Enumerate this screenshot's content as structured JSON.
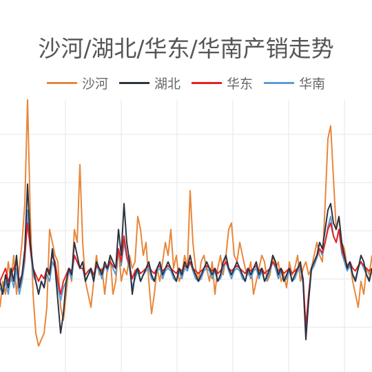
{
  "chart_data": {
    "type": "line",
    "title": "沙河/湖北/华东/华南产销走势",
    "xlabel": "",
    "ylabel": "",
    "grid": true,
    "legend_position": "top",
    "ylim": [
      0,
      2.1
    ],
    "x": [
      0,
      1,
      2,
      3,
      4,
      5,
      6,
      7,
      8,
      9,
      10,
      11,
      12,
      13,
      14,
      15,
      16,
      17,
      18,
      19,
      20,
      21,
      22,
      23,
      24,
      25,
      26,
      27,
      28,
      29,
      30,
      31,
      32,
      33,
      34,
      35,
      36,
      37,
      38,
      39,
      40,
      41,
      42,
      43,
      44,
      45,
      46,
      47,
      48,
      49,
      50,
      51,
      52,
      53,
      54,
      55,
      56,
      57,
      58,
      59,
      60,
      61,
      62,
      63,
      64,
      65,
      66,
      67,
      68,
      69,
      70,
      71,
      72,
      73,
      74,
      75,
      76,
      77,
      78,
      79,
      80,
      81,
      82,
      83,
      84,
      85,
      86,
      87,
      88,
      89,
      90,
      91,
      92,
      93,
      94,
      95,
      96,
      97,
      98,
      99,
      100,
      101,
      102,
      103,
      104,
      105,
      106,
      107,
      108,
      109,
      110,
      111,
      112,
      113,
      114,
      115,
      116,
      117,
      118,
      119,
      120,
      121,
      122,
      123,
      124,
      125,
      126,
      127,
      128,
      129,
      130,
      131,
      132,
      133,
      134,
      135
    ],
    "series": [
      {
        "name": "沙河",
        "color": "#e8863a",
        "values": [
          0.5,
          0.7,
          0.6,
          0.85,
          0.7,
          0.9,
          0.6,
          0.8,
          1.0,
          1.3,
          2.1,
          1.2,
          0.6,
          0.3,
          0.2,
          0.25,
          0.3,
          0.5,
          1.1,
          1.0,
          0.9,
          0.85,
          0.5,
          0.4,
          0.6,
          0.8,
          0.7,
          1.1,
          1.0,
          1.6,
          1.0,
          0.7,
          0.6,
          0.5,
          0.7,
          0.9,
          0.75,
          0.8,
          0.6,
          0.8,
          0.9,
          0.6,
          0.7,
          0.95,
          0.7,
          0.8,
          0.75,
          0.9,
          0.8,
          0.85,
          1.2,
          1.1,
          0.9,
          1.0,
          0.7,
          0.45,
          0.6,
          0.8,
          0.7,
          0.85,
          1.0,
          0.9,
          1.1,
          0.8,
          0.9,
          0.7,
          0.75,
          0.9,
          0.8,
          1.4,
          1.0,
          0.8,
          0.7,
          0.85,
          0.9,
          0.8,
          0.7,
          0.85,
          0.6,
          0.8,
          0.9,
          0.75,
          0.9,
          1.1,
          1.15,
          0.9,
          0.85,
          1.0,
          0.9,
          0.8,
          0.75,
          0.85,
          0.6,
          0.7,
          0.8,
          0.9,
          0.85,
          0.7,
          0.75,
          0.9,
          0.8,
          0.85,
          0.7,
          0.75,
          0.65,
          0.85,
          0.75,
          0.8,
          0.9,
          0.7,
          0.8,
          0.85,
          0.75,
          0.8,
          0.9,
          1.0,
          0.9,
          0.85,
          1.3,
          1.8,
          1.9,
          1.5,
          1.1,
          1.2,
          1.0,
          0.95,
          0.8,
          0.85,
          0.7,
          0.6,
          0.5,
          0.7,
          0.6,
          0.8,
          0.75,
          0.9
        ]
      },
      {
        "name": "湖北",
        "color": "#2b3340",
        "values": [
          0.7,
          0.6,
          0.75,
          0.65,
          0.8,
          0.7,
          0.9,
          0.65,
          0.75,
          0.95,
          1.45,
          1.0,
          0.8,
          0.7,
          0.6,
          0.7,
          0.65,
          0.8,
          0.75,
          0.95,
          0.8,
          0.55,
          0.3,
          0.45,
          0.7,
          0.8,
          0.75,
          1.0,
          0.9,
          0.8,
          0.85,
          0.7,
          0.75,
          0.8,
          0.7,
          0.85,
          0.8,
          0.75,
          0.85,
          0.8,
          0.9,
          0.85,
          0.8,
          1.1,
          0.9,
          1.3,
          1.0,
          0.85,
          0.6,
          0.75,
          0.8,
          0.7,
          0.75,
          0.8,
          0.85,
          0.75,
          0.7,
          0.8,
          0.85,
          0.75,
          0.8,
          0.85,
          0.8,
          0.75,
          0.7,
          0.8,
          0.75,
          0.85,
          0.8,
          0.9,
          0.8,
          0.75,
          0.7,
          0.75,
          0.8,
          0.85,
          0.8,
          0.75,
          0.8,
          0.7,
          0.75,
          0.85,
          0.9,
          0.8,
          0.75,
          0.8,
          0.85,
          0.8,
          0.75,
          0.7,
          0.8,
          0.75,
          0.8,
          0.85,
          0.75,
          0.8,
          0.7,
          0.75,
          0.8,
          0.9,
          0.85,
          0.75,
          0.8,
          0.7,
          0.75,
          0.8,
          0.7,
          0.75,
          0.8,
          0.85,
          0.7,
          0.25,
          0.55,
          0.8,
          0.85,
          0.9,
          1.0,
          0.95,
          1.1,
          1.25,
          1.3,
          1.15,
          1.1,
          1.2,
          1.0,
          0.9,
          0.8,
          0.85,
          0.75,
          0.7,
          0.8,
          0.9,
          0.85,
          0.75,
          0.7,
          0.8
        ]
      },
      {
        "name": "华东",
        "color": "#e82020",
        "values": [
          0.7,
          0.75,
          0.8,
          0.7,
          0.75,
          0.8,
          0.85,
          0.7,
          0.75,
          0.9,
          1.15,
          0.95,
          0.8,
          0.75,
          0.7,
          0.75,
          0.72,
          0.8,
          0.78,
          0.9,
          0.85,
          0.7,
          0.6,
          0.7,
          0.75,
          0.8,
          0.78,
          0.9,
          0.85,
          0.8,
          0.8,
          0.75,
          0.78,
          0.8,
          0.75,
          0.82,
          0.8,
          0.78,
          0.82,
          0.8,
          0.85,
          0.82,
          0.8,
          0.95,
          0.85,
          1.05,
          0.9,
          0.82,
          0.72,
          0.78,
          0.8,
          0.76,
          0.78,
          0.8,
          0.82,
          0.78,
          0.76,
          0.8,
          0.82,
          0.78,
          0.8,
          0.82,
          0.8,
          0.78,
          0.76,
          0.8,
          0.78,
          0.82,
          0.8,
          0.85,
          0.8,
          0.78,
          0.76,
          0.78,
          0.8,
          0.82,
          0.8,
          0.78,
          0.8,
          0.76,
          0.78,
          0.82,
          0.85,
          0.8,
          0.78,
          0.8,
          0.82,
          0.8,
          0.78,
          0.76,
          0.8,
          0.78,
          0.8,
          0.82,
          0.78,
          0.8,
          0.76,
          0.78,
          0.8,
          0.85,
          0.82,
          0.78,
          0.8,
          0.76,
          0.78,
          0.8,
          0.76,
          0.78,
          0.8,
          0.82,
          0.72,
          0.35,
          0.6,
          0.8,
          0.85,
          0.9,
          0.95,
          0.92,
          1.0,
          1.1,
          1.15,
          1.05,
          1.0,
          1.1,
          0.95,
          0.88,
          0.82,
          0.85,
          0.8,
          0.78,
          0.82,
          0.85,
          0.82,
          0.8,
          0.78,
          0.8
        ]
      },
      {
        "name": "华南",
        "color": "#5b9bd5",
        "values": [
          0.65,
          0.6,
          0.7,
          0.6,
          0.75,
          0.65,
          0.8,
          0.6,
          0.7,
          0.85,
          1.25,
          0.95,
          0.75,
          0.7,
          0.6,
          0.7,
          0.65,
          0.75,
          0.7,
          0.85,
          0.8,
          0.65,
          0.55,
          0.65,
          0.7,
          0.78,
          0.72,
          0.9,
          0.85,
          0.8,
          0.8,
          0.7,
          0.75,
          0.78,
          0.7,
          0.82,
          0.78,
          0.72,
          0.82,
          0.78,
          0.85,
          0.8,
          0.75,
          0.95,
          0.82,
          1.0,
          0.88,
          0.8,
          0.65,
          0.72,
          0.78,
          0.7,
          0.75,
          0.78,
          0.8,
          0.72,
          0.7,
          0.78,
          0.8,
          0.72,
          0.78,
          0.8,
          0.78,
          0.72,
          0.7,
          0.78,
          0.72,
          0.8,
          0.78,
          0.85,
          0.78,
          0.72,
          0.7,
          0.72,
          0.78,
          0.8,
          0.78,
          0.72,
          0.78,
          0.7,
          0.72,
          0.8,
          0.85,
          0.78,
          0.72,
          0.78,
          0.8,
          0.78,
          0.72,
          0.7,
          0.78,
          0.72,
          0.78,
          0.8,
          0.72,
          0.78,
          0.7,
          0.72,
          0.78,
          0.85,
          0.8,
          0.72,
          0.78,
          0.7,
          0.72,
          0.78,
          0.7,
          0.72,
          0.78,
          0.8,
          0.68,
          0.3,
          0.55,
          0.78,
          0.82,
          0.88,
          0.95,
          0.9,
          1.0,
          1.12,
          1.2,
          1.05,
          1.0,
          1.1,
          0.92,
          0.85,
          0.78,
          0.82,
          0.75,
          0.72,
          0.8,
          0.85,
          0.8,
          0.75,
          0.72,
          0.78
        ]
      }
    ]
  }
}
